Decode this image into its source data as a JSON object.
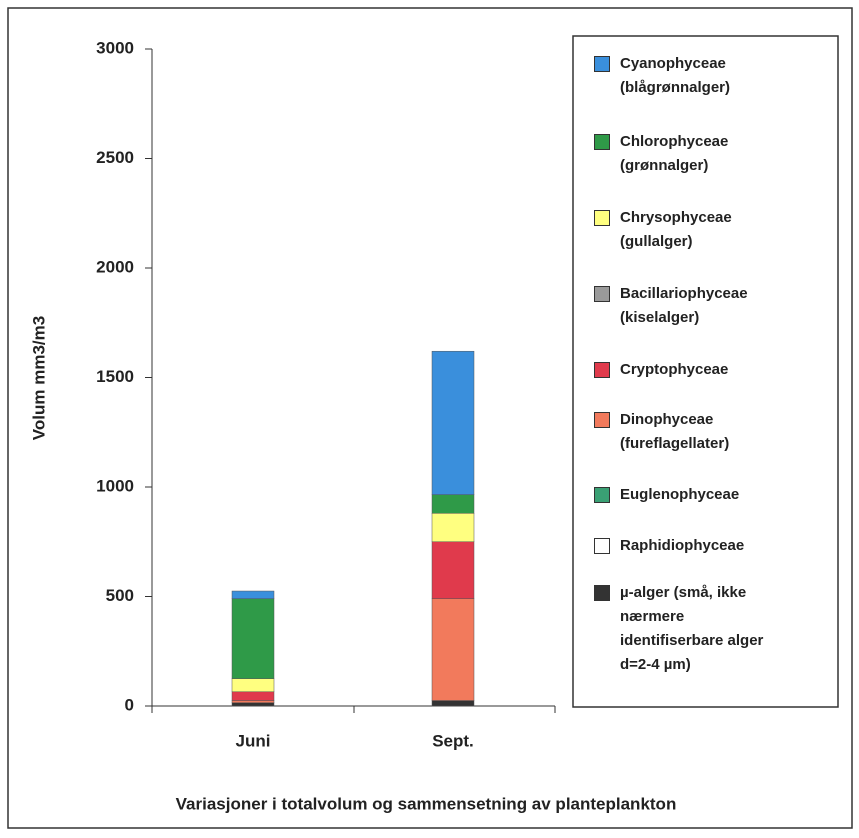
{
  "chart_data": {
    "type": "stacked_bar",
    "title": "Variasjoner i totalvolum og sammensetning av planteplankton",
    "ylabel": "Volum mm3/m3",
    "categories": [
      "Juni",
      "Sept."
    ],
    "ylim": [
      0,
      3000
    ],
    "yticks": [
      0,
      500,
      1000,
      1500,
      2000,
      2500,
      3000
    ],
    "series": [
      {
        "name": "Cyanophyceae\n(blågrønnalger)",
        "color": "#3a8fdc",
        "values": [
          35,
          655
        ]
      },
      {
        "name": "Chlorophyceae\n(grønnalger)",
        "color": "#2f9a48",
        "values": [
          365,
          85
        ]
      },
      {
        "name": "Chrysophyceae\n(gullalger)",
        "color": "#ffff80",
        "values": [
          60,
          130
        ]
      },
      {
        "name": "Bacillariophyceae\n(kiselalger)",
        "color": "#9a9a9a",
        "values": [
          0,
          0
        ]
      },
      {
        "name": "Cryptophyceae",
        "color": "#e03a4c",
        "values": [
          40,
          260
        ]
      },
      {
        "name": "Dinophyceae\n(fureflagellater)",
        "color": "#f27a5c",
        "values": [
          10,
          465
        ]
      },
      {
        "name": "Euglenophyceae",
        "color": "#3aa074",
        "values": [
          0,
          0
        ]
      },
      {
        "name": "Raphidiophyceae",
        "color": "#ffffff",
        "values": [
          0,
          0
        ]
      },
      {
        "name": "µ-alger  (små, ikke\nnærmere\nidentifiserbare alger\nd=2-4 µm)",
        "color": "#333333",
        "values": [
          15,
          25
        ]
      }
    ]
  }
}
